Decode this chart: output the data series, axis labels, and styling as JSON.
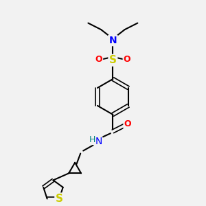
{
  "background_color": "#f2f2f2",
  "bond_color": "#000000",
  "atom_colors": {
    "N": "#0000ff",
    "O": "#ff0000",
    "S_sulfonamide": "#cccc00",
    "S_thiophene": "#cccc00",
    "H": "#008080",
    "C": "#000000"
  },
  "title": "",
  "figsize": [
    3.0,
    3.0
  ],
  "dpi": 100
}
